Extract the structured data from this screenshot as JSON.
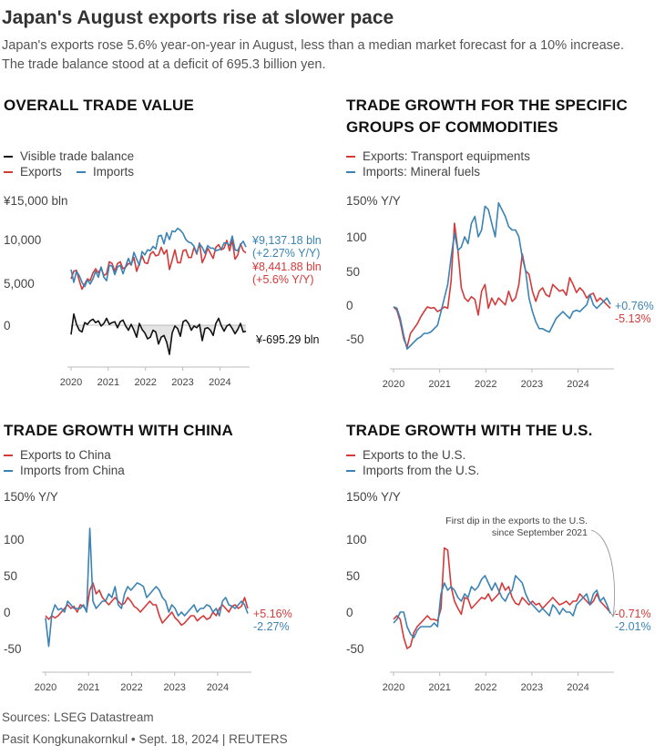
{
  "header": {
    "title": "Japan's August exports rise at slower pace",
    "subtitle": "Japan's exports rose 5.6% year-on-year in August, less than a median market forecast for a 10% increase. The trade balance stood at a deficit of 695.3 billion yen."
  },
  "colors": {
    "export": "#d43a3a",
    "import": "#3a83b4",
    "balance": "#111111",
    "axis": "#999999",
    "text": "#444444",
    "shade": "#e4e4e4"
  },
  "footer": {
    "sources": "Sources: LSEG Datastream",
    "credit": "Pasit Kongkunakornkul • Sept. 18, 2024 | REUTERS"
  },
  "chart_data": [
    {
      "id": "trade-value",
      "type": "line",
      "title": "OVERALL TRADE VALUE",
      "legend": [
        "Visible trade balance",
        "Exports",
        "Imports"
      ],
      "y_unit_label": "¥15,000 bln",
      "ytick_labels": [
        "10,000",
        "5,000",
        "0"
      ],
      "ylim": [
        -3200,
        15000
      ],
      "xlim": [
        2020,
        2024.7
      ],
      "xtick_labels": [
        "2020",
        "2021",
        "2022",
        "2023",
        "2024"
      ],
      "annotations": {
        "imports_value": "¥9,137.18 bln",
        "imports_change": "(+2.27% Y/Y)",
        "exports_value": "¥8,441.88 bln",
        "exports_change": "(+5.6% Y/Y)",
        "balance_value": "¥-695.29 bln"
      },
      "series": [
        {
          "name": "Visible trade balance",
          "color": "balance",
          "values": [
            -1100,
            1300,
            100,
            -600,
            -800,
            300,
            100,
            500,
            700,
            300,
            500,
            -100,
            200,
            800,
            100,
            300,
            400,
            -300,
            400,
            600,
            -100,
            -600,
            100,
            -600,
            -1400,
            200,
            -500,
            -900,
            -1600,
            -1400,
            -600,
            -800,
            -2200,
            -1400,
            -1200,
            -2000,
            -3400,
            -900,
            -100,
            -400,
            -1300,
            400,
            600,
            200,
            -600,
            -100,
            -300,
            100,
            -1800,
            -400,
            -300,
            -600,
            -1200,
            200,
            800,
            -100,
            -700,
            -100,
            100,
            -400,
            -1000,
            -500,
            200,
            -800,
            -700
          ]
        },
        {
          "name": "Exports",
          "color": "export",
          "values": [
            5400,
            6300,
            6400,
            5200,
            4200,
            4800,
            5400,
            5200,
            6100,
            6600,
            6100,
            6700,
            5800,
            6000,
            7400,
            7200,
            6300,
            7200,
            7400,
            6600,
            6800,
            7200,
            7100,
            7900,
            6300,
            7200,
            8100,
            7300,
            7200,
            8300,
            8600,
            8100,
            8200,
            9100,
            8300,
            8800,
            6500,
            7600,
            8800,
            7300,
            7300,
            8700,
            8800,
            7900,
            7900,
            9100,
            8300,
            9600,
            7300,
            8000,
            9000,
            8400,
            7800,
            9100,
            9400,
            8800,
            9000,
            9900,
            8700,
            9900,
            7700,
            8200,
            9500,
            8700,
            8442
          ]
        },
        {
          "name": "Imports",
          "color": "import",
          "values": [
            6500,
            5000,
            6300,
            5800,
            5000,
            4500,
            5300,
            4800,
            5400,
            6300,
            5600,
            6800,
            5600,
            5200,
            7000,
            6900,
            5900,
            6800,
            7000,
            6000,
            6900,
            7800,
            7000,
            8500,
            7700,
            7000,
            8600,
            8200,
            8800,
            8700,
            9200,
            8900,
            10400,
            10500,
            9500,
            10800,
            10000,
            11000,
            10900,
            11300,
            11100,
            10700,
            10000,
            9700,
            9600,
            9200,
            8400,
            9500,
            9100,
            8400,
            9300,
            9000,
            9000,
            8700,
            8800,
            8900,
            9600,
            9600,
            9300,
            10400,
            8800,
            8700,
            9400,
            9800,
            9137
          ]
        }
      ]
    },
    {
      "id": "commodities",
      "type": "line",
      "title": "TRADE GROWTH FOR THE SPECIFIC GROUPS OF COMMODITIES",
      "legend": [
        "Exports: Transport equipments",
        "Imports: Mineral fuels"
      ],
      "y_unit_label": "150% Y/Y",
      "ytick_labels": [
        "100",
        "50",
        "0",
        "-50"
      ],
      "ylim": [
        -80,
        150
      ],
      "xlim": [
        2020,
        2024.7
      ],
      "xtick_labels": [
        "2020",
        "2021",
        "2022",
        "2023",
        "2024"
      ],
      "annotations": {
        "imports_end": "+0.76%",
        "exports_end": "-5.13%"
      },
      "series": [
        {
          "name": "Exports: Transport equipments",
          "color": "export",
          "values": [
            -3,
            -8,
            -25,
            -50,
            -62,
            -42,
            -35,
            -28,
            -18,
            -10,
            -3,
            -5,
            -4,
            -10,
            -7,
            -3,
            -5,
            35,
            120,
            80,
            25,
            10,
            5,
            12,
            8,
            -15,
            20,
            30,
            -5,
            10,
            0,
            10,
            5,
            0,
            20,
            5,
            10,
            30,
            75,
            50,
            45,
            20,
            5,
            20,
            25,
            15,
            12,
            30,
            25,
            20,
            22,
            14,
            40,
            30,
            18,
            25,
            20,
            10,
            15,
            17,
            5,
            10,
            5,
            0,
            -5
          ]
        },
        {
          "name": "Imports: Mineral fuels",
          "color": "import",
          "values": [
            -3,
            -5,
            -20,
            -45,
            -65,
            -60,
            -55,
            -50,
            -47,
            -42,
            -42,
            -40,
            -35,
            -30,
            -10,
            10,
            30,
            70,
            105,
            80,
            85,
            100,
            90,
            120,
            130,
            100,
            110,
            145,
            140,
            120,
            100,
            150,
            140,
            130,
            115,
            110,
            110,
            100,
            70,
            50,
            10,
            -10,
            -25,
            -35,
            -35,
            -38,
            -40,
            -30,
            -20,
            -15,
            -10,
            -15,
            -20,
            -10,
            -8,
            -10,
            -5,
            0,
            15,
            0,
            -5,
            0,
            5,
            10,
            0.76
          ]
        }
      ]
    },
    {
      "id": "china",
      "type": "line",
      "title": "TRADE GROWTH WITH CHINA",
      "legend": [
        "Exports to China",
        "Imports from China"
      ],
      "y_unit_label": "150% Y/Y",
      "ytick_labels": [
        "100",
        "50",
        "0",
        "-50"
      ],
      "ylim": [
        -80,
        150
      ],
      "xlim": [
        2020,
        2024.7
      ],
      "xtick_labels": [
        "2020",
        "2021",
        "2022",
        "2023",
        "2024"
      ],
      "annotations": {
        "exports_end": "+5.16%",
        "imports_end": "-2.27%"
      },
      "series": [
        {
          "name": "Exports to China",
          "color": "export",
          "values": [
            -5,
            -10,
            -5,
            -8,
            -5,
            0,
            5,
            10,
            5,
            8,
            0,
            10,
            8,
            2,
            30,
            40,
            25,
            30,
            20,
            15,
            10,
            15,
            20,
            15,
            10,
            12,
            20,
            15,
            8,
            5,
            0,
            5,
            10,
            15,
            10,
            10,
            -5,
            -15,
            -10,
            -5,
            0,
            -8,
            -12,
            -18,
            -15,
            -10,
            -5,
            -5,
            -12,
            -8,
            -5,
            -10,
            -8,
            0,
            -5,
            5,
            10,
            5,
            0,
            8,
            10,
            5,
            8,
            20,
            5
          ]
        },
        {
          "name": "Imports from China",
          "color": "import",
          "values": [
            -8,
            -47,
            -3,
            10,
            3,
            5,
            0,
            15,
            10,
            5,
            5,
            5,
            10,
            0,
            115,
            15,
            5,
            10,
            15,
            15,
            25,
            20,
            35,
            10,
            5,
            25,
            35,
            30,
            35,
            40,
            38,
            35,
            20,
            25,
            30,
            35,
            30,
            20,
            15,
            0,
            10,
            5,
            -5,
            0,
            -5,
            0,
            5,
            10,
            0,
            5,
            5,
            10,
            8,
            0,
            5,
            -5,
            15,
            20,
            10,
            8,
            5,
            10,
            15,
            10,
            -2
          ]
        }
      ]
    },
    {
      "id": "us",
      "type": "line",
      "title": "TRADE GROWTH WITH THE U.S.",
      "legend": [
        "Exports to the U.S.",
        "Imports from the U.S."
      ],
      "y_unit_label": "150% Y/Y",
      "ytick_labels": [
        "100",
        "50",
        "0",
        "-50"
      ],
      "ylim": [
        -80,
        150
      ],
      "xlim": [
        2020,
        2024.7
      ],
      "xtick_labels": [
        "2020",
        "2021",
        "2022",
        "2023",
        "2024"
      ],
      "annotations": {
        "note": [
          "First dip in the exports to the U.S.",
          "since September 2021"
        ],
        "exports_end": "-0.71%",
        "imports_end": "-2.01%"
      },
      "series": [
        {
          "name": "Exports to the U.S.",
          "color": "export",
          "values": [
            -10,
            -5,
            -10,
            -35,
            -50,
            -47,
            -28,
            -20,
            -15,
            -10,
            -5,
            -10,
            -10,
            -12,
            5,
            88,
            85,
            35,
            15,
            5,
            -3,
            20,
            18,
            5,
            10,
            15,
            20,
            18,
            25,
            15,
            20,
            25,
            40,
            30,
            35,
            20,
            12,
            10,
            20,
            15,
            10,
            15,
            10,
            12,
            5,
            10,
            15,
            20,
            15,
            10,
            12,
            15,
            10,
            15,
            15,
            25,
            20,
            15,
            10,
            15,
            25,
            15,
            10,
            5,
            -0.7
          ]
        },
        {
          "name": "Imports from the U.S.",
          "color": "import",
          "values": [
            -15,
            -10,
            0,
            0,
            -20,
            -30,
            -35,
            -25,
            -20,
            -20,
            -20,
            -20,
            -15,
            -20,
            25,
            40,
            30,
            35,
            30,
            20,
            15,
            25,
            20,
            35,
            30,
            35,
            45,
            50,
            40,
            30,
            40,
            30,
            20,
            15,
            25,
            30,
            50,
            45,
            40,
            25,
            15,
            10,
            5,
            0,
            5,
            0,
            -5,
            10,
            5,
            -3,
            5,
            0,
            0,
            -5,
            10,
            15,
            20,
            25,
            10,
            25,
            30,
            15,
            20,
            10,
            -2
          ]
        }
      ]
    }
  ]
}
